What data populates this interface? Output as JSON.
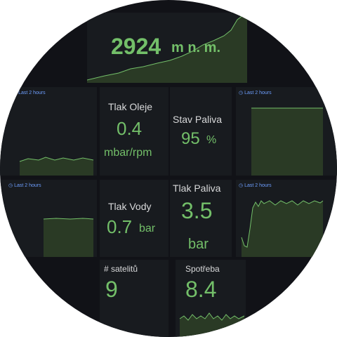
{
  "colors": {
    "background": "#111217",
    "panel": "#181b1f",
    "value": "#73bf69",
    "label": "#d8d9da",
    "time_range": "#6e9fff"
  },
  "altitude": {
    "value": "2924",
    "unit": "m n. m."
  },
  "oil_pressure": {
    "title": "Tlak Oleje",
    "value": "0.4",
    "unit": "mbar/rpm"
  },
  "fuel_level": {
    "title": "Stav Paliva",
    "value": "95",
    "unit": "%"
  },
  "water_pressure": {
    "title": "Tlak Vody",
    "value": "0.7",
    "unit": "bar"
  },
  "fuel_pressure": {
    "title": "Tlak Paliva",
    "value": "3.5",
    "unit": "bar"
  },
  "satellites": {
    "title": "# satelitů",
    "value": "9"
  },
  "consumption": {
    "title": "Spotřeba",
    "value": "8.4"
  },
  "time_range_label": "Last 2 hours",
  "icons": {
    "time_range": "clock-icon"
  }
}
